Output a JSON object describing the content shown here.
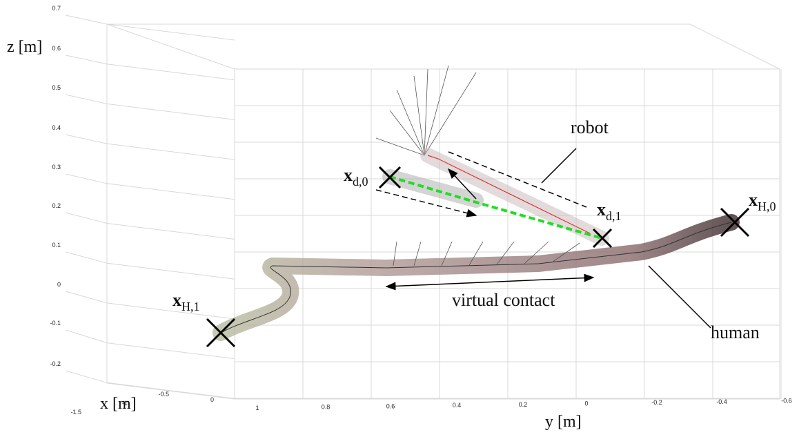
{
  "axes": {
    "z": {
      "label": "z [m]",
      "ticks": [
        "0.7",
        "0.6",
        "0.5",
        "0.4",
        "0.3",
        "0.2",
        "0.1",
        "0",
        "-0.1",
        "-0.2"
      ]
    },
    "x": {
      "label": "x [m]",
      "ticks": [
        "-1.5",
        "-1",
        "-0.5",
        "0"
      ]
    },
    "y": {
      "label": "y [m]",
      "ticks": [
        "1",
        "0.8",
        "0.6",
        "0.4",
        "0.2",
        "0",
        "-0.2",
        "-0.4",
        "-0.6"
      ]
    }
  },
  "annotations": [
    {
      "label": "x",
      "sub": "d,0"
    },
    {
      "label": "x",
      "sub": "d,1"
    },
    {
      "label": "x",
      "sub": "H,0"
    },
    {
      "label": "x",
      "sub": "H,1"
    }
  ],
  "labels": {
    "robot": "robot",
    "virtual_contact": "virtual contact",
    "human": "human"
  }
}
